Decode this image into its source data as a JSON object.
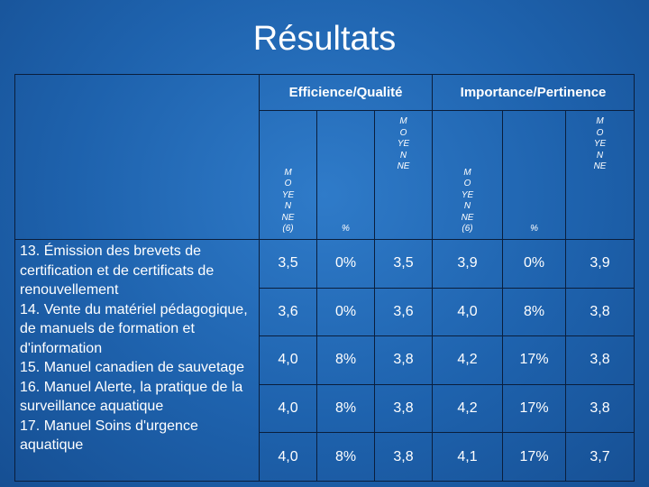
{
  "title": "Résultats",
  "groups": [
    "Efficience/Qualité",
    "Importance/Pertinence"
  ],
  "subheaders": [
    "MOYENNE (6)",
    "%",
    "MOYENNE",
    "MOYENNE (6)",
    "%",
    "MOYENNE"
  ],
  "rows": [
    {
      "label": "13. Émission des brevets de certification et de certificats de renouvellement",
      "values": [
        "3,5",
        "0%",
        "3,5",
        "3,9",
        "0%",
        "3,9"
      ]
    },
    {
      "label": "14. Vente du matériel pédagogique, de manuels de formation et d'information",
      "values": [
        "3,6",
        "0%",
        "3,6",
        "4,0",
        "8%",
        "3,8"
      ]
    },
    {
      "label": "15. Manuel canadien de sauvetage",
      "values": [
        "4,0",
        "8%",
        "3,8",
        "4,2",
        "17%",
        "3,8"
      ]
    },
    {
      "label": "16. Manuel Alerte, la pratique de la surveillance aquatique",
      "values": [
        "4,0",
        "8%",
        "3,8",
        "4,2",
        "17%",
        "3,8"
      ]
    },
    {
      "label": "17. Manuel Soins d'urgence aquatique",
      "values": [
        "4,0",
        "8%",
        "3,8",
        "4,1",
        "17%",
        "3,7"
      ]
    }
  ]
}
